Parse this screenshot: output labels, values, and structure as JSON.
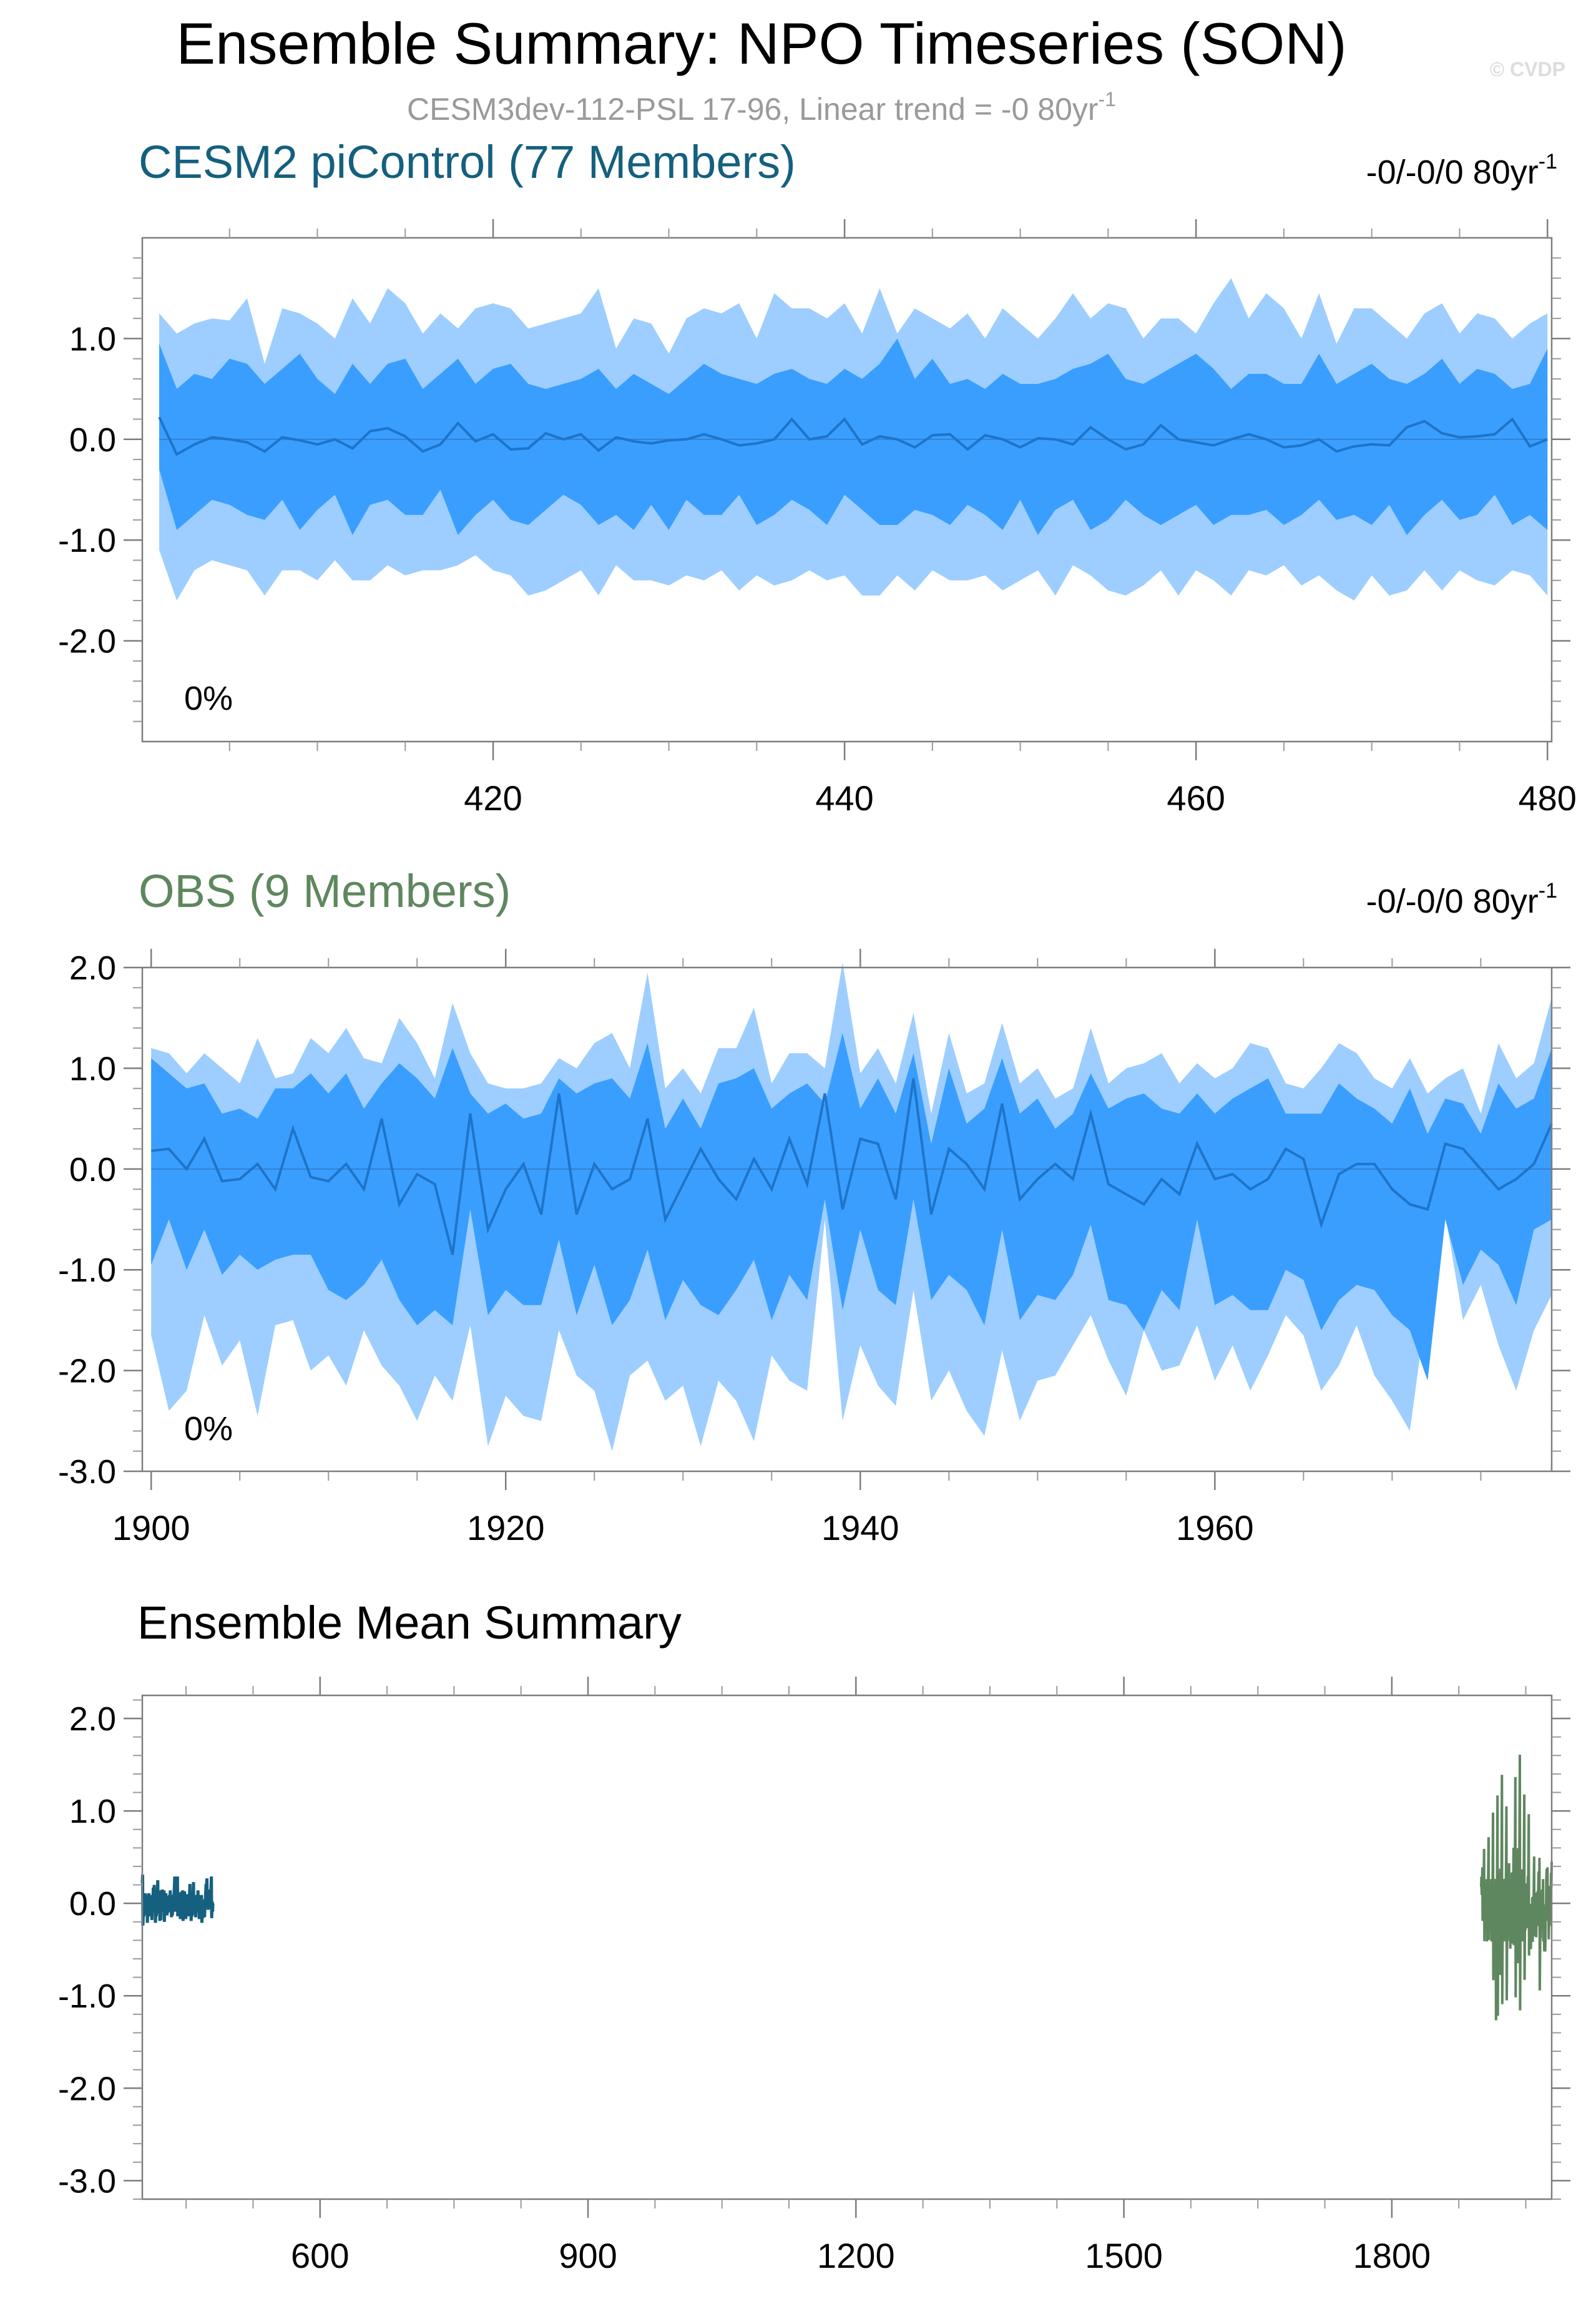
{
  "title": "Ensemble Summary: NPO Timeseries (SON)",
  "credit": "© CVDP",
  "subtitle_main": "CESM3dev-112-PSL 17-96, Linear trend = -0 80yr",
  "subtitle_sup": "-1",
  "colors": {
    "model": "#14607E",
    "obs": "#5F875F",
    "band_outer": "#9DCEFF",
    "band_inner": "#3A9EFF",
    "mean_line": "#1E74C8"
  },
  "chart_data": [
    {
      "type": "area",
      "panel": "model",
      "title": "CESM2 piControl (77 Members)",
      "trend_label": "-0/-0/0 80yr",
      "trend_sup": "-1",
      "pct_label": "0%",
      "xlim": [
        401,
        480
      ],
      "ylim": [
        -3.0,
        2.0
      ],
      "x_ticks": [
        420,
        440,
        460,
        480
      ],
      "x_tick_labels": [
        "420",
        "440",
        "460",
        "480"
      ],
      "y_ticks": [
        1.0,
        0.0,
        -1.0,
        -2.0
      ],
      "y_tick_labels": [
        "1.0",
        "0.0",
        "-1.0",
        "-2.0"
      ],
      "x": [
        401,
        402,
        403,
        404,
        405,
        406,
        407,
        408,
        409,
        410,
        411,
        412,
        413,
        414,
        415,
        416,
        417,
        418,
        419,
        420,
        421,
        422,
        423,
        424,
        425,
        426,
        427,
        428,
        429,
        430,
        431,
        432,
        433,
        434,
        435,
        436,
        437,
        438,
        439,
        440,
        441,
        442,
        443,
        444,
        445,
        446,
        447,
        448,
        449,
        450,
        451,
        452,
        453,
        454,
        455,
        456,
        457,
        458,
        459,
        460,
        461,
        462,
        463,
        464,
        465,
        466,
        467,
        468,
        469,
        470,
        471,
        472,
        473,
        474,
        475,
        476,
        477,
        478,
        479,
        480
      ],
      "mean": [
        0.22,
        -0.15,
        -0.05,
        0.02,
        0.0,
        -0.03,
        -0.12,
        0.02,
        -0.01,
        -0.05,
        0.0,
        -0.09,
        0.08,
        0.11,
        0.03,
        -0.12,
        -0.05,
        0.16,
        -0.02,
        0.05,
        -0.1,
        -0.09,
        0.06,
        0.0,
        0.05,
        -0.11,
        0.02,
        -0.02,
        -0.04,
        -0.01,
        0.0,
        0.05,
        0.0,
        -0.06,
        -0.04,
        0.0,
        0.2,
        0.0,
        0.03,
        0.2,
        -0.05,
        0.03,
        0.0,
        -0.08,
        0.04,
        0.05,
        -0.1,
        0.04,
        0.0,
        -0.08,
        0.01,
        0.0,
        -0.05,
        0.12,
        0.0,
        -0.1,
        -0.05,
        0.14,
        0.0,
        -0.03,
        -0.06,
        0.0,
        0.05,
        0.0,
        -0.08,
        -0.06,
        0.0,
        -0.12,
        -0.07,
        -0.05,
        -0.06,
        0.12,
        0.18,
        0.06,
        0.02,
        0.03,
        0.05,
        0.2,
        -0.07,
        0.0
      ],
      "p90": [
        1.25,
        1.05,
        1.15,
        1.2,
        1.18,
        1.4,
        0.75,
        1.3,
        1.25,
        1.15,
        1.0,
        1.4,
        1.15,
        1.5,
        1.35,
        1.05,
        1.25,
        1.1,
        1.3,
        1.35,
        1.3,
        1.1,
        1.15,
        1.2,
        1.25,
        1.5,
        0.9,
        1.2,
        1.15,
        0.85,
        1.2,
        1.3,
        1.25,
        1.35,
        1.0,
        1.45,
        1.3,
        1.3,
        1.2,
        1.35,
        1.05,
        1.5,
        1.05,
        1.3,
        1.2,
        1.1,
        1.25,
        1.0,
        1.3,
        1.15,
        1.0,
        1.2,
        1.45,
        1.2,
        1.35,
        1.3,
        1.0,
        1.2,
        1.2,
        1.05,
        1.35,
        1.6,
        1.2,
        1.45,
        1.3,
        1.0,
        1.45,
        0.95,
        1.3,
        1.3,
        1.15,
        1.0,
        1.25,
        1.35,
        1.05,
        1.25,
        1.2,
        1.0,
        1.15,
        1.25
      ],
      "p75": [
        0.95,
        0.5,
        0.65,
        0.6,
        0.8,
        0.75,
        0.55,
        0.7,
        0.85,
        0.6,
        0.45,
        0.75,
        0.55,
        0.75,
        0.8,
        0.5,
        0.65,
        0.8,
        0.55,
        0.7,
        0.75,
        0.55,
        0.5,
        0.55,
        0.6,
        0.7,
        0.5,
        0.65,
        0.55,
        0.45,
        0.6,
        0.75,
        0.65,
        0.6,
        0.55,
        0.65,
        0.7,
        0.6,
        0.55,
        0.7,
        0.6,
        0.75,
        1.0,
        0.6,
        0.8,
        0.55,
        0.6,
        0.5,
        0.65,
        0.55,
        0.55,
        0.6,
        0.7,
        0.75,
        0.85,
        0.6,
        0.55,
        0.65,
        0.75,
        0.85,
        0.7,
        0.5,
        0.65,
        0.65,
        0.55,
        0.55,
        0.85,
        0.55,
        0.65,
        0.75,
        0.6,
        0.55,
        0.65,
        0.8,
        0.55,
        0.7,
        0.65,
        0.5,
        0.55,
        0.9
      ],
      "p25": [
        -0.3,
        -0.9,
        -0.75,
        -0.6,
        -0.65,
        -0.75,
        -0.8,
        -0.6,
        -0.9,
        -0.7,
        -0.55,
        -0.95,
        -0.65,
        -0.6,
        -0.75,
        -0.75,
        -0.5,
        -0.95,
        -0.75,
        -0.6,
        -0.8,
        -0.85,
        -0.7,
        -0.55,
        -0.65,
        -0.85,
        -0.75,
        -0.9,
        -0.65,
        -0.9,
        -0.6,
        -0.75,
        -0.75,
        -0.55,
        -0.85,
        -0.75,
        -0.6,
        -0.7,
        -0.85,
        -0.55,
        -0.7,
        -0.85,
        -0.85,
        -0.7,
        -0.75,
        -0.85,
        -0.65,
        -0.75,
        -0.9,
        -0.6,
        -0.95,
        -0.7,
        -0.6,
        -0.9,
        -0.8,
        -0.6,
        -0.75,
        -0.85,
        -0.75,
        -0.65,
        -0.85,
        -0.75,
        -0.75,
        -0.7,
        -0.85,
        -0.75,
        -0.6,
        -0.8,
        -0.75,
        -0.85,
        -0.65,
        -0.95,
        -0.75,
        -0.6,
        -0.8,
        -0.75,
        -0.55,
        -0.85,
        -0.75,
        -0.9
      ],
      "p10": [
        -1.1,
        -1.6,
        -1.3,
        -1.2,
        -1.25,
        -1.3,
        -1.55,
        -1.3,
        -1.3,
        -1.4,
        -1.2,
        -1.4,
        -1.4,
        -1.25,
        -1.35,
        -1.3,
        -1.3,
        -1.25,
        -1.15,
        -1.3,
        -1.35,
        -1.55,
        -1.5,
        -1.4,
        -1.3,
        -1.55,
        -1.25,
        -1.4,
        -1.4,
        -1.45,
        -1.35,
        -1.4,
        -1.3,
        -1.5,
        -1.35,
        -1.45,
        -1.4,
        -1.3,
        -1.4,
        -1.35,
        -1.55,
        -1.55,
        -1.35,
        -1.5,
        -1.3,
        -1.4,
        -1.4,
        -1.35,
        -1.5,
        -1.4,
        -1.3,
        -1.55,
        -1.25,
        -1.35,
        -1.5,
        -1.55,
        -1.45,
        -1.3,
        -1.55,
        -1.3,
        -1.4,
        -1.55,
        -1.3,
        -1.35,
        -1.25,
        -1.45,
        -1.35,
        -1.5,
        -1.6,
        -1.35,
        -1.55,
        -1.5,
        -1.3,
        -1.5,
        -1.3,
        -1.4,
        -1.45,
        -1.3,
        -1.35,
        -1.55
      ]
    },
    {
      "type": "area",
      "panel": "obs",
      "title": "OBS (9 Members)",
      "trend_label": "-0/-0/0 80yr",
      "trend_sup": "-1",
      "pct_label": "0%",
      "xlim": [
        1899.5,
        1979
      ],
      "ylim": [
        -3.0,
        2.0
      ],
      "x_ticks": [
        1900,
        1920,
        1940,
        1960
      ],
      "x_tick_labels": [
        "1900",
        "1920",
        "1940",
        "1960"
      ],
      "y_ticks": [
        2.0,
        1.0,
        0.0,
        -1.0,
        -2.0,
        -3.0
      ],
      "y_tick_labels": [
        "2.0",
        "1.0",
        "0.0",
        "-1.0",
        "-2.0",
        "-3.0"
      ],
      "x": [
        1900,
        1901,
        1902,
        1903,
        1904,
        1905,
        1906,
        1907,
        1908,
        1909,
        1910,
        1911,
        1912,
        1913,
        1914,
        1915,
        1916,
        1917,
        1918,
        1919,
        1920,
        1921,
        1922,
        1923,
        1924,
        1925,
        1926,
        1927,
        1928,
        1929,
        1930,
        1931,
        1932,
        1933,
        1934,
        1935,
        1936,
        1937,
        1938,
        1939,
        1940,
        1941,
        1942,
        1943,
        1944,
        1945,
        1946,
        1947,
        1948,
        1949,
        1950,
        1951,
        1952,
        1953,
        1954,
        1955,
        1956,
        1957,
        1958,
        1959,
        1960,
        1961,
        1962,
        1963,
        1964,
        1965,
        1966,
        1967,
        1968,
        1969,
        1970,
        1971,
        1972,
        1973,
        1974,
        1975,
        1976,
        1977,
        1978,
        1979
      ],
      "mean": [
        0.18,
        0.2,
        0.0,
        0.3,
        -0.12,
        -0.1,
        0.05,
        -0.2,
        0.4,
        -0.08,
        -0.12,
        0.05,
        -0.2,
        0.5,
        -0.35,
        -0.05,
        -0.15,
        -0.85,
        0.55,
        -0.6,
        -0.2,
        0.05,
        -0.45,
        0.75,
        -0.45,
        0.05,
        -0.2,
        -0.1,
        0.5,
        -0.5,
        -0.15,
        0.2,
        -0.1,
        -0.3,
        0.1,
        -0.2,
        0.3,
        -0.15,
        0.75,
        -0.4,
        0.3,
        0.25,
        -0.3,
        0.9,
        -0.45,
        0.2,
        0.05,
        -0.2,
        0.65,
        -0.3,
        -0.1,
        0.05,
        -0.1,
        0.55,
        -0.15,
        -0.25,
        -0.35,
        -0.1,
        -0.25,
        0.25,
        -0.1,
        -0.05,
        -0.2,
        -0.1,
        0.2,
        0.1,
        -0.55,
        -0.05,
        0.05,
        0.05,
        -0.2,
        -0.35,
        -0.4,
        0.25,
        0.2,
        0.0,
        -0.2,
        -0.1,
        0.05,
        0.45
      ],
      "p90": [
        1.2,
        1.15,
        0.95,
        1.15,
        1.0,
        0.85,
        1.3,
        0.9,
        0.95,
        1.3,
        1.15,
        1.4,
        1.1,
        1.05,
        1.5,
        1.25,
        0.9,
        1.65,
        1.15,
        0.85,
        0.8,
        0.8,
        0.85,
        1.1,
        1.0,
        1.25,
        1.35,
        1.0,
        1.95,
        0.8,
        1.0,
        0.75,
        1.2,
        1.2,
        1.6,
        0.85,
        1.15,
        1.15,
        1.0,
        2.05,
        0.95,
        1.2,
        0.85,
        1.55,
        0.55,
        1.35,
        0.75,
        0.85,
        1.45,
        0.85,
        1.0,
        0.7,
        0.8,
        1.4,
        0.85,
        1.0,
        1.05,
        1.15,
        0.85,
        1.05,
        0.9,
        1.0,
        1.25,
        1.2,
        0.85,
        0.8,
        1.0,
        1.25,
        1.15,
        0.9,
        0.8,
        1.1,
        0.75,
        0.9,
        1.0,
        0.55,
        1.25,
        0.9,
        1.05,
        1.7
      ],
      "p75": [
        1.1,
        0.95,
        0.8,
        0.85,
        0.55,
        0.6,
        0.5,
        0.8,
        0.8,
        0.95,
        0.75,
        0.95,
        0.6,
        0.85,
        1.05,
        0.9,
        0.7,
        1.2,
        0.75,
        0.55,
        0.65,
        0.5,
        0.55,
        0.9,
        0.75,
        0.85,
        0.9,
        0.7,
        1.25,
        0.4,
        0.7,
        0.4,
        0.85,
        0.9,
        1.0,
        0.6,
        0.75,
        0.85,
        0.65,
        1.35,
        0.6,
        0.9,
        0.55,
        1.15,
        0.25,
        1.0,
        0.45,
        0.6,
        1.1,
        0.55,
        0.7,
        0.4,
        0.55,
        0.95,
        0.6,
        0.7,
        0.75,
        0.6,
        0.55,
        0.75,
        0.55,
        0.7,
        0.8,
        0.9,
        0.55,
        0.55,
        0.55,
        0.85,
        0.7,
        0.6,
        0.45,
        0.8,
        0.35,
        0.7,
        0.65,
        0.35,
        0.85,
        0.6,
        0.7,
        1.2
      ],
      "p25": [
        -0.95,
        -0.5,
        -1.0,
        -0.6,
        -1.05,
        -0.85,
        -1.0,
        -0.9,
        -0.85,
        -0.85,
        -1.2,
        -1.3,
        -1.15,
        -0.9,
        -1.3,
        -1.55,
        -1.4,
        -1.55,
        -0.4,
        -1.45,
        -1.2,
        -1.35,
        -1.35,
        -0.7,
        -1.45,
        -0.95,
        -1.55,
        -1.3,
        -0.8,
        -1.5,
        -1.1,
        -1.35,
        -1.45,
        -1.2,
        -0.9,
        -1.5,
        -1.05,
        -1.3,
        -0.3,
        -1.4,
        -0.6,
        -1.2,
        -1.35,
        -0.3,
        -1.3,
        -1.05,
        -1.2,
        -1.55,
        -0.6,
        -1.5,
        -1.25,
        -1.3,
        -1.05,
        -0.55,
        -1.3,
        -1.35,
        -1.6,
        -1.2,
        -1.4,
        -0.5,
        -1.35,
        -1.25,
        -1.4,
        -1.4,
        -1.0,
        -1.1,
        -1.6,
        -1.3,
        -1.15,
        -1.2,
        -1.45,
        -1.6,
        -2.1,
        -0.5,
        -1.15,
        -0.8,
        -0.95,
        -1.35,
        -0.6,
        -0.5
      ],
      "p10": [
        -1.65,
        -2.4,
        -2.2,
        -1.45,
        -1.95,
        -1.7,
        -2.45,
        -1.55,
        -1.5,
        -2.0,
        -1.85,
        -2.15,
        -1.6,
        -1.95,
        -2.15,
        -2.5,
        -2.05,
        -2.3,
        -1.55,
        -2.75,
        -2.25,
        -2.45,
        -2.5,
        -1.6,
        -2.05,
        -2.2,
        -2.8,
        -2.05,
        -1.9,
        -2.3,
        -2.15,
        -2.75,
        -2.1,
        -2.3,
        -2.7,
        -1.85,
        -2.1,
        -2.2,
        -0.5,
        -2.5,
        -1.75,
        -2.15,
        -2.35,
        -1.2,
        -2.3,
        -2.0,
        -2.4,
        -2.65,
        -1.8,
        -2.5,
        -2.1,
        -2.05,
        -1.75,
        -1.45,
        -1.9,
        -2.25,
        -1.6,
        -2.0,
        -1.95,
        -1.55,
        -2.1,
        -1.75,
        -2.2,
        -1.85,
        -1.45,
        -1.65,
        -2.2,
        -1.95,
        -1.55,
        -2.05,
        -2.3,
        -2.6,
        -1.3,
        -0.45,
        -1.5,
        -1.15,
        -1.75,
        -2.2,
        -1.6,
        -1.25
      ]
    },
    {
      "type": "line",
      "panel": "summary",
      "title": "Ensemble Mean Summary",
      "xlim": [
        401,
        1979
      ],
      "ylim": [
        -3.2,
        2.25
      ],
      "x_ticks": [
        600,
        900,
        1200,
        1500,
        1800
      ],
      "x_tick_labels": [
        "600",
        "900",
        "1200",
        "1500",
        "1800"
      ],
      "y_ticks": [
        2.0,
        1.0,
        0.0,
        -1.0,
        -2.0,
        -3.0
      ],
      "y_tick_labels": [
        "2.0",
        "1.0",
        "0.0",
        "-1.0",
        "-2.0",
        "-3.0"
      ],
      "series": [
        {
          "name": "CESM2 piControl",
          "x_start": 401,
          "values": [
            0.22,
            -0.15,
            -0.05,
            0.02,
            0.0,
            -0.03,
            -0.12,
            0.02,
            -0.01,
            -0.05,
            0.0,
            -0.09,
            0.08,
            0.11,
            0.03,
            -0.12,
            -0.05,
            0.16,
            -0.02,
            0.05,
            -0.1,
            -0.09,
            0.06,
            0.0,
            0.05,
            -0.11,
            0.02,
            -0.02,
            -0.04,
            -0.01,
            0.0,
            0.05,
            0.0,
            -0.06,
            -0.04,
            0.0,
            0.2,
            0.0,
            0.03,
            0.2,
            -0.05,
            0.03,
            0.0,
            -0.08,
            0.04,
            0.05,
            -0.1,
            0.04,
            0.0,
            -0.08,
            0.01,
            0.0,
            -0.05,
            0.12,
            0.0,
            -0.1,
            -0.05,
            0.14,
            0.0,
            -0.03,
            -0.06,
            0.0,
            0.05,
            0.0,
            -0.08,
            -0.06,
            0.0,
            -0.12,
            -0.07,
            -0.05,
            -0.06,
            0.12,
            0.18,
            0.06,
            0.02,
            0.03,
            0.05,
            0.2,
            -0.07,
            0.0
          ]
        },
        {
          "name": "OBS",
          "x_start": 1900,
          "values": [
            0.18,
            0.2,
            0.0,
            0.3,
            -0.12,
            -0.1,
            0.05,
            -0.2,
            0.4,
            -0.08,
            -0.12,
            0.05,
            -0.2,
            0.5,
            -0.35,
            -0.05,
            -0.15,
            -0.85,
            0.55,
            -0.6,
            -0.2,
            0.05,
            -0.45,
            0.75,
            -0.45,
            0.05,
            -0.2,
            -0.1,
            0.5,
            -0.5,
            -0.15,
            0.2,
            -0.1,
            -0.3,
            0.1,
            -0.2,
            0.3,
            -0.15,
            0.75,
            -0.4,
            0.3,
            0.25,
            -0.3,
            0.9,
            -0.45,
            0.2,
            0.05,
            -0.2,
            0.65,
            -0.3,
            -0.1,
            0.05,
            -0.1,
            0.55,
            -0.15,
            -0.25,
            -0.35,
            -0.1,
            -0.25,
            0.25,
            -0.1,
            -0.05,
            -0.2,
            -0.1,
            0.2,
            0.1,
            -0.55,
            -0.05,
            0.05,
            0.05,
            -0.2,
            -0.35,
            -0.4,
            0.25,
            0.2,
            0.0,
            -0.2,
            -0.1,
            0.05,
            0.45
          ]
        }
      ]
    }
  ]
}
